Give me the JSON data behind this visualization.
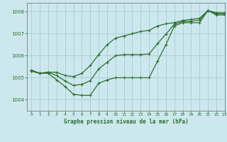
{
  "title": "Graphe pression niveau de la mer (hPa)",
  "background_color": "#cce8ee",
  "grid_color": "#aacccc",
  "line_color": "#2d6e2d",
  "marker_color": "#2d6e2d",
  "xlim": [
    -0.5,
    23
  ],
  "ylim": [
    1003.5,
    1008.4
  ],
  "yticks": [
    1004,
    1005,
    1006,
    1007,
    1008
  ],
  "xticks": [
    0,
    1,
    2,
    3,
    4,
    5,
    6,
    7,
    8,
    9,
    10,
    11,
    12,
    13,
    14,
    15,
    16,
    17,
    18,
    19,
    20,
    21,
    22,
    23
  ],
  "hours": [
    0,
    1,
    2,
    3,
    4,
    5,
    6,
    7,
    8,
    9,
    10,
    11,
    12,
    13,
    14,
    15,
    16,
    17,
    18,
    19,
    20,
    21,
    22,
    23
  ],
  "pressure_min": [
    1005.3,
    1005.2,
    1005.2,
    1004.9,
    1004.6,
    1004.25,
    1004.2,
    1004.2,
    1004.75,
    1004.9,
    1005.0,
    1005.0,
    1005.0,
    1005.0,
    1005.0,
    1005.75,
    1006.5,
    1007.35,
    1007.5,
    1007.5,
    1007.5,
    1008.05,
    1007.85,
    1007.85
  ],
  "pressure_max": [
    1005.3,
    1005.2,
    1005.25,
    1005.25,
    1005.1,
    1005.05,
    1005.2,
    1005.55,
    1006.05,
    1006.5,
    1006.8,
    1006.9,
    1007.0,
    1007.1,
    1007.15,
    1007.35,
    1007.45,
    1007.5,
    1007.6,
    1007.65,
    1007.7,
    1008.05,
    1007.95,
    1007.95
  ],
  "pressure_avg": [
    1005.35,
    1005.2,
    1005.25,
    1005.1,
    1004.85,
    1004.65,
    1004.7,
    1004.87,
    1005.4,
    1005.7,
    1006.0,
    1006.05,
    1006.05,
    1006.05,
    1006.08,
    1006.55,
    1006.98,
    1007.43,
    1007.55,
    1007.57,
    1007.62,
    1008.05,
    1007.9,
    1007.9
  ]
}
